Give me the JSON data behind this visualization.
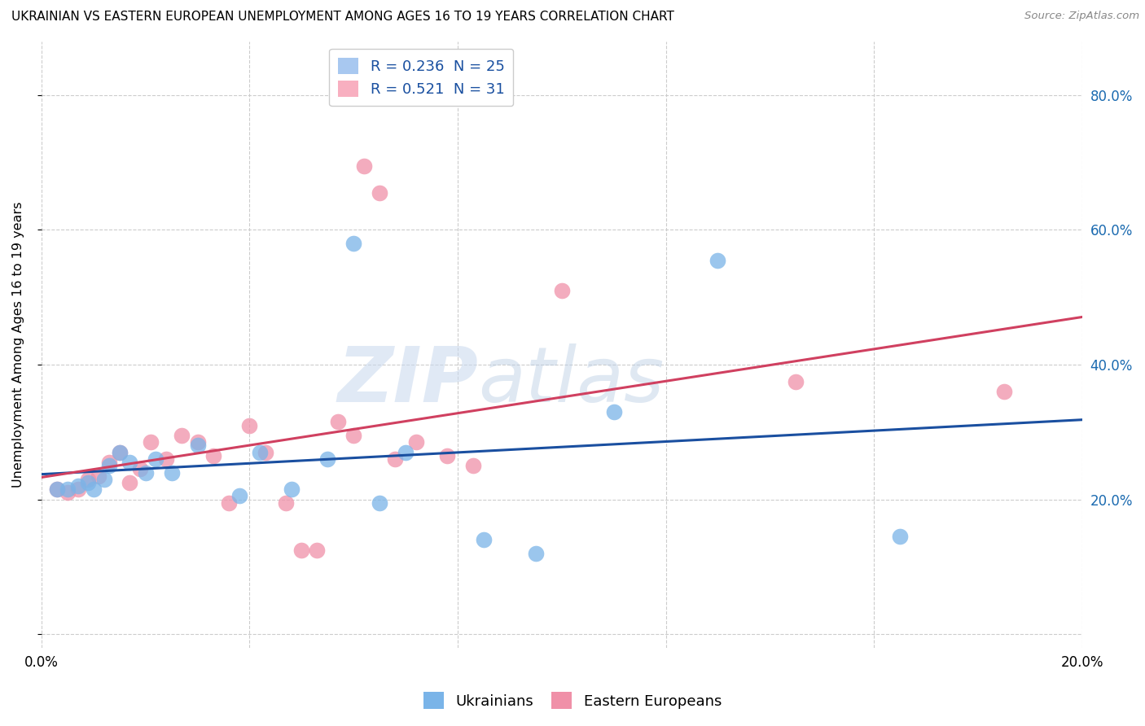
{
  "title": "UKRAINIAN VS EASTERN EUROPEAN UNEMPLOYMENT AMONG AGES 16 TO 19 YEARS CORRELATION CHART",
  "source": "Source: ZipAtlas.com",
  "ylabel": "Unemployment Among Ages 16 to 19 years",
  "xlim": [
    0.0,
    0.2
  ],
  "ylim": [
    -0.02,
    0.88
  ],
  "plot_ylim": [
    0.0,
    0.8
  ],
  "ytick_vals": [
    0.0,
    0.2,
    0.4,
    0.6,
    0.8
  ],
  "ytick_labels": [
    "",
    "20.0%",
    "40.0%",
    "60.0%",
    "80.0%"
  ],
  "xtick_vals": [
    0.0,
    0.04,
    0.08,
    0.12,
    0.16,
    0.2
  ],
  "xtick_labels": [
    "0.0%",
    "",
    "",
    "",
    "",
    "20.0%"
  ],
  "legend_top": [
    {
      "label": "R = 0.236  N = 25",
      "patch_color": "#a8c8f0"
    },
    {
      "label": "R = 0.521  N = 31",
      "patch_color": "#f8afc0"
    }
  ],
  "legend_bottom": [
    "Ukrainians",
    "Eastern Europeans"
  ],
  "ukrainians_color": "#7ab4e8",
  "eastern_color": "#f090a8",
  "ukrainians_line_color": "#1a4fa0",
  "eastern_line_color": "#d04060",
  "watermark_zip": "ZIP",
  "watermark_atlas": "atlas",
  "ukrainians_x": [
    0.003,
    0.005,
    0.007,
    0.009,
    0.01,
    0.012,
    0.013,
    0.015,
    0.017,
    0.02,
    0.022,
    0.025,
    0.03,
    0.038,
    0.042,
    0.048,
    0.055,
    0.06,
    0.065,
    0.07,
    0.085,
    0.095,
    0.11,
    0.13,
    0.165
  ],
  "ukrainians_y": [
    0.215,
    0.215,
    0.22,
    0.225,
    0.215,
    0.23,
    0.25,
    0.27,
    0.255,
    0.24,
    0.26,
    0.24,
    0.28,
    0.205,
    0.27,
    0.215,
    0.26,
    0.58,
    0.195,
    0.27,
    0.14,
    0.12,
    0.33,
    0.555,
    0.145
  ],
  "eastern_x": [
    0.003,
    0.005,
    0.007,
    0.009,
    0.011,
    0.013,
    0.015,
    0.017,
    0.019,
    0.021,
    0.024,
    0.027,
    0.03,
    0.033,
    0.036,
    0.04,
    0.043,
    0.047,
    0.05,
    0.053,
    0.057,
    0.06,
    0.062,
    0.065,
    0.068,
    0.072,
    0.078,
    0.083,
    0.1,
    0.145,
    0.185
  ],
  "eastern_y": [
    0.215,
    0.21,
    0.215,
    0.23,
    0.235,
    0.255,
    0.27,
    0.225,
    0.245,
    0.285,
    0.26,
    0.295,
    0.285,
    0.265,
    0.195,
    0.31,
    0.27,
    0.195,
    0.125,
    0.125,
    0.315,
    0.295,
    0.695,
    0.655,
    0.26,
    0.285,
    0.265,
    0.25,
    0.51,
    0.375,
    0.36
  ]
}
